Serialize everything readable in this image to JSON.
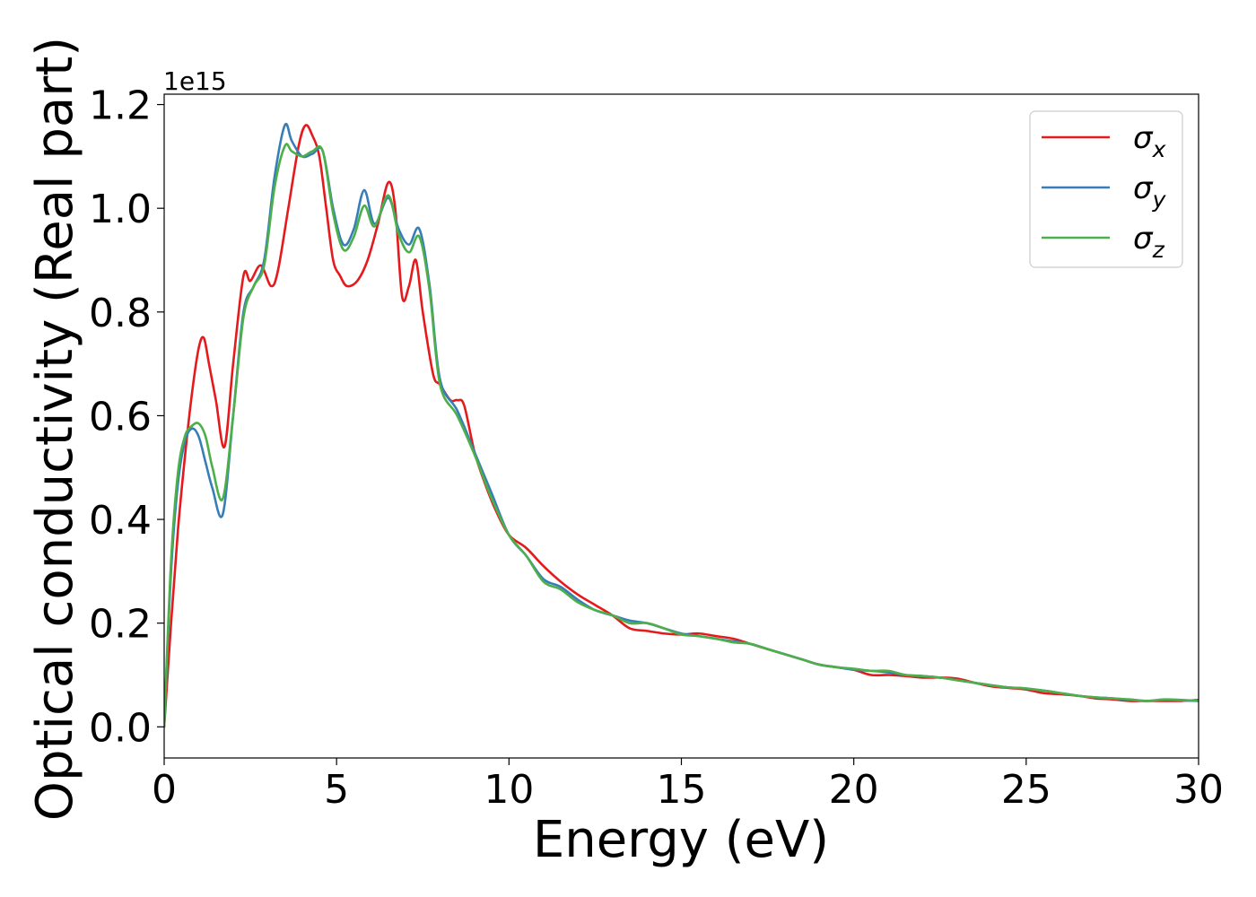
{
  "chart_data": {
    "type": "line",
    "title": "",
    "xlabel": "Energy (eV)",
    "ylabel": "Optical conductivity (Real part)",
    "y_offset_text": "1e15",
    "xlim": [
      0,
      30
    ],
    "ylim": [
      -0.06,
      1.22
    ],
    "x_ticks": [
      0,
      5,
      10,
      15,
      20,
      25,
      30
    ],
    "x_tick_labels": [
      "0",
      "5",
      "10",
      "15",
      "20",
      "25",
      "30"
    ],
    "y_ticks": [
      0.0,
      0.2,
      0.4,
      0.6,
      0.8,
      1.0,
      1.2
    ],
    "y_tick_labels": [
      "0.0",
      "0.2",
      "0.4",
      "0.6",
      "0.8",
      "1.0",
      "1.2"
    ],
    "grid": false,
    "legend_position": "top-right",
    "series": [
      {
        "name": "σx",
        "symbol": "σ",
        "subscript": "x",
        "color": "#e41a1c",
        "x": [
          0,
          0.2,
          0.4,
          0.6,
          0.8,
          1.0,
          1.15,
          1.3,
          1.5,
          1.75,
          2.0,
          2.3,
          2.5,
          2.8,
          3.1,
          3.3,
          3.6,
          3.9,
          4.1,
          4.3,
          4.5,
          4.7,
          4.9,
          5.1,
          5.3,
          5.6,
          5.9,
          6.2,
          6.5,
          6.7,
          6.9,
          7.1,
          7.3,
          7.5,
          7.8,
          8.0,
          8.3,
          8.5,
          8.7,
          9.0,
          9.3,
          9.6,
          10.0,
          10.5,
          11.0,
          11.5,
          12.0,
          12.5,
          13.0,
          13.5,
          14.0,
          14.5,
          15.0,
          15.5,
          16.0,
          16.5,
          17.0,
          17.5,
          18.0,
          18.5,
          19.0,
          19.5,
          20.0,
          20.5,
          21.0,
          21.5,
          22.0,
          22.5,
          23.0,
          23.5,
          24.0,
          24.5,
          25.0,
          25.5,
          26.0,
          26.5,
          27.0,
          27.5,
          28.0,
          28.5,
          29.0,
          29.5,
          30.0
        ],
        "y": [
          0.0,
          0.2,
          0.38,
          0.52,
          0.64,
          0.73,
          0.75,
          0.7,
          0.63,
          0.54,
          0.7,
          0.87,
          0.86,
          0.89,
          0.85,
          0.88,
          1.0,
          1.12,
          1.16,
          1.14,
          1.1,
          1.0,
          0.9,
          0.87,
          0.85,
          0.86,
          0.9,
          0.97,
          1.05,
          1.0,
          0.83,
          0.85,
          0.9,
          0.8,
          0.68,
          0.66,
          0.63,
          0.63,
          0.62,
          0.53,
          0.47,
          0.42,
          0.37,
          0.345,
          0.31,
          0.28,
          0.255,
          0.235,
          0.215,
          0.19,
          0.185,
          0.18,
          0.178,
          0.18,
          0.175,
          0.17,
          0.16,
          0.15,
          0.14,
          0.13,
          0.12,
          0.115,
          0.11,
          0.1,
          0.1,
          0.098,
          0.095,
          0.095,
          0.093,
          0.085,
          0.078,
          0.075,
          0.072,
          0.065,
          0.063,
          0.06,
          0.055,
          0.053,
          0.05,
          0.05,
          0.05,
          0.05,
          0.052
        ]
      },
      {
        "name": "σy",
        "symbol": "σ",
        "subscript": "y",
        "color": "#377eb8",
        "x": [
          0,
          0.2,
          0.4,
          0.6,
          0.8,
          1.0,
          1.2,
          1.4,
          1.7,
          2.0,
          2.3,
          2.6,
          2.9,
          3.2,
          3.5,
          3.7,
          4.0,
          4.3,
          4.6,
          4.9,
          5.2,
          5.5,
          5.8,
          6.1,
          6.5,
          6.8,
          7.1,
          7.4,
          7.7,
          8.0,
          8.5,
          9.0,
          9.5,
          10.0,
          10.5,
          11.0,
          11.5,
          12.0,
          12.5,
          13.0,
          13.5,
          14.0,
          14.5,
          15.0,
          15.5,
          16.0,
          16.5,
          17.0,
          17.5,
          18.0,
          18.5,
          19.0,
          19.5,
          20.0,
          20.5,
          21.0,
          21.5,
          22.0,
          22.5,
          23.0,
          23.5,
          24.0,
          24.5,
          25.0,
          25.5,
          26.0,
          26.5,
          27.0,
          27.5,
          28.0,
          28.5,
          29.0,
          29.5,
          30.0
        ],
        "y": [
          0.0,
          0.3,
          0.47,
          0.55,
          0.575,
          0.56,
          0.51,
          0.46,
          0.41,
          0.6,
          0.8,
          0.85,
          0.9,
          1.06,
          1.16,
          1.13,
          1.1,
          1.105,
          1.11,
          1.0,
          0.93,
          0.96,
          1.035,
          0.97,
          1.02,
          0.96,
          0.93,
          0.96,
          0.85,
          0.67,
          0.61,
          0.53,
          0.45,
          0.37,
          0.33,
          0.285,
          0.27,
          0.245,
          0.225,
          0.215,
          0.205,
          0.2,
          0.19,
          0.18,
          0.175,
          0.17,
          0.165,
          0.16,
          0.15,
          0.14,
          0.13,
          0.12,
          0.115,
          0.11,
          0.108,
          0.105,
          0.1,
          0.098,
          0.095,
          0.09,
          0.085,
          0.08,
          0.076,
          0.074,
          0.07,
          0.065,
          0.06,
          0.057,
          0.055,
          0.052,
          0.05,
          0.052,
          0.051,
          0.05
        ]
      },
      {
        "name": "σz",
        "symbol": "σ",
        "subscript": "z",
        "color": "#4daf4a",
        "x": [
          0,
          0.2,
          0.4,
          0.6,
          0.8,
          1.0,
          1.2,
          1.4,
          1.7,
          2.0,
          2.3,
          2.6,
          2.9,
          3.2,
          3.5,
          3.7,
          4.0,
          4.3,
          4.6,
          4.9,
          5.2,
          5.5,
          5.8,
          6.1,
          6.5,
          6.8,
          7.1,
          7.4,
          7.7,
          8.0,
          8.5,
          9.0,
          9.5,
          10.0,
          10.5,
          11.0,
          11.5,
          12.0,
          12.5,
          13.0,
          13.5,
          14.0,
          14.5,
          15.0,
          15.5,
          16.0,
          16.5,
          17.0,
          17.5,
          18.0,
          18.5,
          19.0,
          19.5,
          20.0,
          20.5,
          21.0,
          21.5,
          22.0,
          22.5,
          23.0,
          23.5,
          24.0,
          24.5,
          25.0,
          25.5,
          26.0,
          26.5,
          27.0,
          27.5,
          28.0,
          28.5,
          29.0,
          29.5,
          30.0
        ],
        "y": [
          0.0,
          0.32,
          0.49,
          0.56,
          0.58,
          0.585,
          0.56,
          0.5,
          0.44,
          0.6,
          0.79,
          0.85,
          0.89,
          1.04,
          1.12,
          1.11,
          1.1,
          1.11,
          1.11,
          0.99,
          0.92,
          0.945,
          1.005,
          0.965,
          1.025,
          0.95,
          0.915,
          0.945,
          0.84,
          0.66,
          0.6,
          0.525,
          0.44,
          0.37,
          0.33,
          0.28,
          0.265,
          0.24,
          0.225,
          0.215,
          0.2,
          0.2,
          0.19,
          0.178,
          0.175,
          0.17,
          0.163,
          0.16,
          0.15,
          0.14,
          0.13,
          0.12,
          0.115,
          0.112,
          0.108,
          0.108,
          0.1,
          0.098,
          0.095,
          0.09,
          0.085,
          0.08,
          0.076,
          0.074,
          0.07,
          0.065,
          0.06,
          0.057,
          0.055,
          0.053,
          0.05,
          0.053,
          0.052,
          0.05
        ]
      }
    ]
  }
}
